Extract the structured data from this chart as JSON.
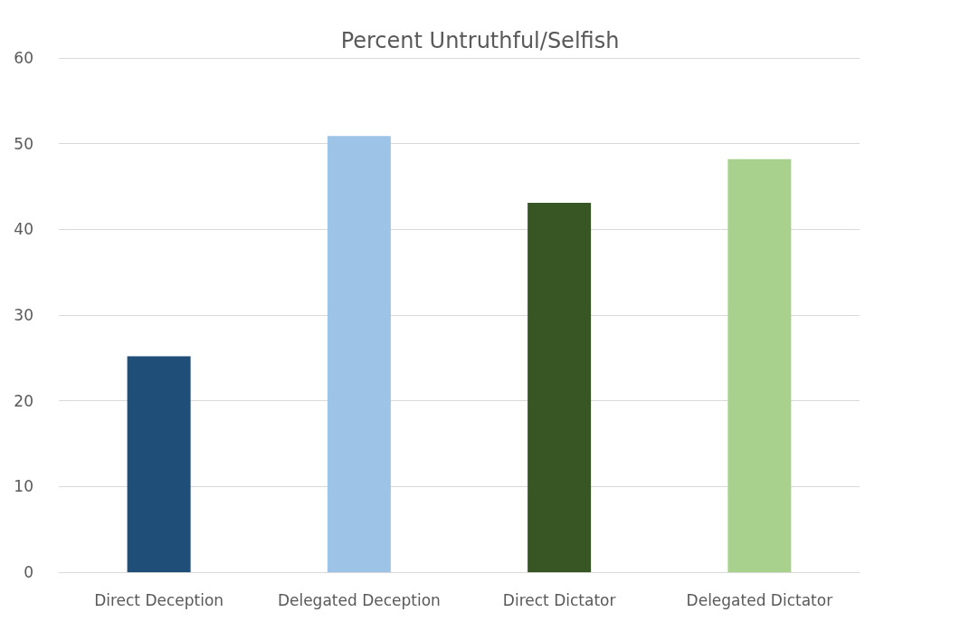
{
  "chart_data": {
    "type": "bar",
    "title": "Percent Untruthful/Selfish",
    "categories": [
      "Direct Deception",
      "Delegated Deception",
      "Direct Dictator",
      "Delegated Dictator"
    ],
    "values": [
      25.2,
      50.9,
      43.1,
      48.2
    ],
    "colors": [
      "#1f4e79",
      "#9dc3e6",
      "#375623",
      "#a9d18e"
    ],
    "ylim": [
      0,
      60
    ],
    "yticks": [
      0,
      10,
      20,
      30,
      40,
      50,
      60
    ],
    "grid": "y"
  }
}
